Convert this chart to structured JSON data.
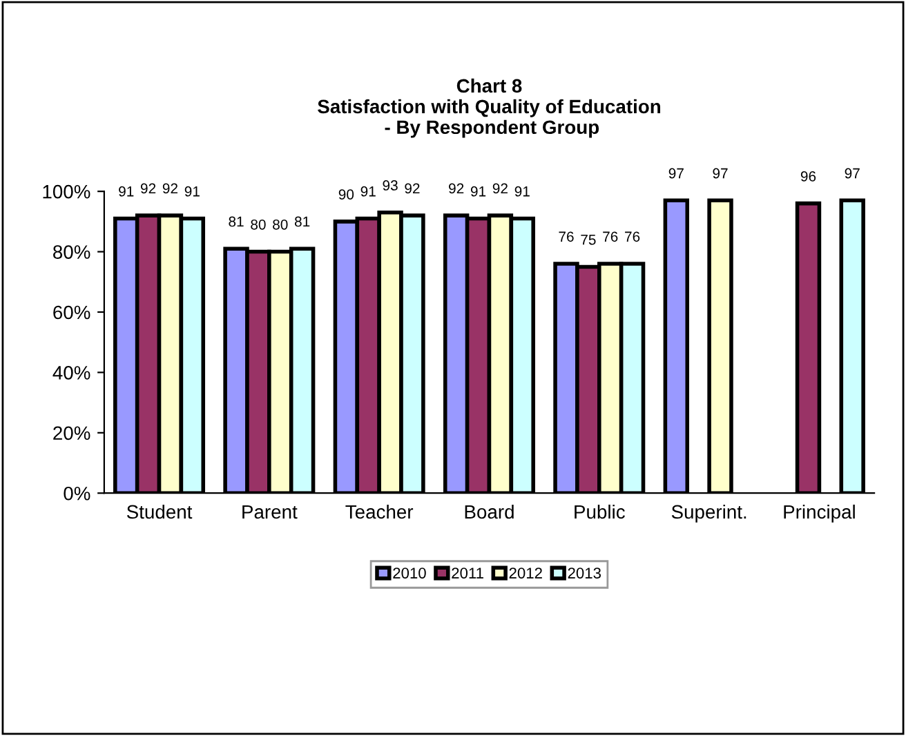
{
  "chart_data": {
    "type": "bar",
    "title": "Chart 8\nSatisfaction with Quality of Education\n - By Respondent Group",
    "categories": [
      "Student",
      "Parent",
      "Teacher",
      "Board",
      "Public",
      "Superint.",
      "Principal"
    ],
    "series": [
      {
        "name": "2010",
        "color": "#9999ff",
        "values": [
          91,
          81,
          90,
          92,
          76,
          97,
          null
        ]
      },
      {
        "name": "2011",
        "color": "#993366",
        "values": [
          92,
          80,
          91,
          91,
          75,
          null,
          96
        ]
      },
      {
        "name": "2012",
        "color": "#ffffcc",
        "values": [
          92,
          80,
          93,
          92,
          76,
          97,
          null
        ]
      },
      {
        "name": "2013",
        "color": "#ccffff",
        "values": [
          91,
          81,
          92,
          91,
          76,
          null,
          97
        ]
      }
    ],
    "ylim": [
      0,
      100
    ],
    "yticks": [
      {
        "value": 0,
        "label": "0%"
      },
      {
        "value": 20,
        "label": "20%"
      },
      {
        "value": 40,
        "label": "40%"
      },
      {
        "value": 60,
        "label": "60%"
      },
      {
        "value": 80,
        "label": "80%"
      },
      {
        "value": 100,
        "label": "100%"
      }
    ],
    "data_labels": true,
    "grid": false,
    "legend": "bottom"
  }
}
